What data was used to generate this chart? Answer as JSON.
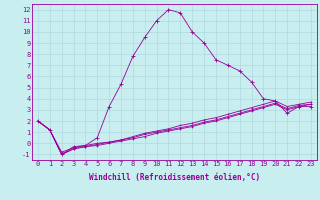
{
  "title": "",
  "xlabel": "Windchill (Refroidissement éolien,°C)",
  "ylabel": "",
  "xlim": [
    -0.5,
    23.5
  ],
  "ylim": [
    -1.5,
    12.5
  ],
  "xticks": [
    0,
    1,
    2,
    3,
    4,
    5,
    6,
    7,
    8,
    9,
    10,
    11,
    12,
    13,
    14,
    15,
    16,
    17,
    18,
    19,
    20,
    21,
    22,
    23
  ],
  "yticks": [
    -1,
    0,
    1,
    2,
    3,
    4,
    5,
    6,
    7,
    8,
    9,
    10,
    11,
    12
  ],
  "bg_color": "#c8eef0",
  "line_color": "#990099",
  "grid_color": "#b0d8dc",
  "line1_x": [
    0,
    1,
    2,
    3,
    4,
    5,
    6,
    7,
    8,
    9,
    10,
    11,
    12,
    13,
    14,
    15,
    16,
    17,
    18,
    19,
    20,
    21,
    22,
    23
  ],
  "line1_y": [
    2.0,
    1.2,
    -1.0,
    -0.3,
    -0.2,
    0.5,
    3.3,
    5.3,
    7.8,
    9.5,
    11.0,
    12.0,
    11.7,
    10.0,
    9.0,
    7.5,
    7.0,
    6.5,
    5.5,
    4.0,
    3.8,
    2.7,
    3.3,
    3.3
  ],
  "line2_x": [
    0,
    1,
    2,
    3,
    4,
    5,
    6,
    7,
    8,
    9,
    10,
    11,
    12,
    13,
    14,
    15,
    16,
    17,
    18,
    19,
    20,
    21,
    22,
    23
  ],
  "line2_y": [
    2.0,
    1.2,
    -1.0,
    -0.5,
    -0.3,
    -0.2,
    0.0,
    0.2,
    0.4,
    0.6,
    0.9,
    1.1,
    1.3,
    1.5,
    1.8,
    2.0,
    2.3,
    2.6,
    2.9,
    3.2,
    3.5,
    3.0,
    3.3,
    3.5
  ],
  "line3_x": [
    0,
    1,
    2,
    3,
    4,
    5,
    6,
    7,
    8,
    9,
    10,
    11,
    12,
    13,
    14,
    15,
    16,
    17,
    18,
    19,
    20,
    21,
    22,
    23
  ],
  "line3_y": [
    2.0,
    1.2,
    -1.0,
    -0.5,
    -0.3,
    -0.1,
    0.1,
    0.3,
    0.5,
    0.8,
    1.0,
    1.2,
    1.4,
    1.6,
    1.9,
    2.1,
    2.4,
    2.7,
    3.0,
    3.3,
    3.6,
    3.1,
    3.4,
    3.5
  ],
  "line4_x": [
    0,
    1,
    2,
    3,
    4,
    5,
    6,
    7,
    8,
    9,
    10,
    11,
    12,
    13,
    14,
    15,
    16,
    17,
    18,
    19,
    20,
    21,
    22,
    23
  ],
  "line4_y": [
    2.0,
    1.2,
    -0.8,
    -0.4,
    -0.2,
    0.0,
    0.1,
    0.3,
    0.6,
    0.9,
    1.1,
    1.3,
    1.6,
    1.8,
    2.1,
    2.3,
    2.6,
    2.9,
    3.2,
    3.5,
    3.8,
    3.3,
    3.5,
    3.7
  ],
  "font_size": 5.0,
  "xlabel_fontsize": 5.5
}
